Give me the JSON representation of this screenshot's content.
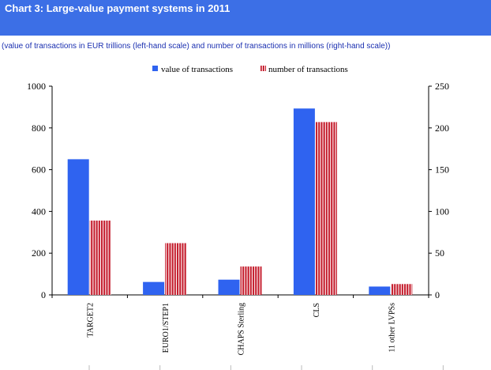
{
  "header": {
    "title": "Chart 3:  Large-value payment systems in 2011",
    "subtitle": "(value of transactions in EUR trillions (left-hand scale) and number of transactions in millions (right-hand scale))"
  },
  "colors": {
    "header_bg": "#3c6fe6",
    "subtitle_text": "#1a2fb0",
    "value_bar": "#2f63f0",
    "number_bar": "#c41a2a",
    "number_bar_stripe": "#ffffff"
  },
  "chart_data": {
    "type": "bar",
    "categories": [
      "TARGET2",
      "EURO1/STEP1",
      "CHAPS Sterling",
      "CLS",
      "11 other LVPSs"
    ],
    "series": [
      {
        "name": "value of transactions",
        "axis": "left",
        "values": [
          650,
          62,
          73,
          893,
          40
        ]
      },
      {
        "name": "number of transactions",
        "axis": "right",
        "values": [
          89,
          62,
          34,
          207,
          13
        ]
      }
    ],
    "ylim_left": [
      0,
      1000
    ],
    "yticks_left": [
      0,
      200,
      400,
      600,
      800,
      1000
    ],
    "ylim_right": [
      0,
      250
    ],
    "yticks_right": [
      0,
      50,
      100,
      150,
      200,
      250
    ],
    "legend_position": "top-center",
    "grid": false
  }
}
